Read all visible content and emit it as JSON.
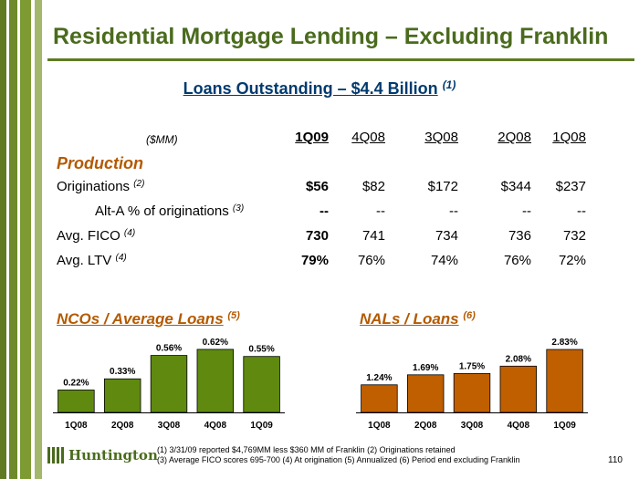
{
  "title": "Residential Mortgage Lending – Excluding Franklin",
  "subtitle": {
    "text": "Loans Outstanding – $4.4 Billion",
    "note": "(1)"
  },
  "table": {
    "unit_label": "($MM)",
    "columns": [
      "1Q09",
      "4Q08",
      "3Q08",
      "2Q08",
      "1Q08"
    ],
    "section": "Production",
    "rows": [
      {
        "label": "Originations",
        "note": "(2)",
        "values": [
          "$56",
          "$82",
          "$172",
          "$344",
          "$237"
        ]
      },
      {
        "label": "Alt-A % of originations",
        "note": "(3)",
        "values": [
          "--",
          "--",
          "--",
          "--",
          "--"
        ]
      },
      {
        "label": "Avg. FICO",
        "note": "(4)",
        "values": [
          "730",
          "741",
          "734",
          "736",
          "732"
        ]
      },
      {
        "label": "Avg. LTV",
        "note": "(4)",
        "values": [
          "79%",
          "76%",
          "74%",
          "76%",
          "72%"
        ]
      }
    ]
  },
  "ncos": {
    "title": "NCOs / Average Loans",
    "note": "(5)"
  },
  "nals": {
    "title": "NALs / Loans",
    "note": "(6)"
  },
  "chart_data": [
    {
      "type": "bar",
      "title": "NCOs / Average Loans (5)",
      "categories": [
        "1Q08",
        "2Q08",
        "3Q08",
        "4Q08",
        "1Q09"
      ],
      "values": [
        0.22,
        0.33,
        0.56,
        0.62,
        0.55
      ],
      "labels": [
        "0.22%",
        "0.33%",
        "0.56%",
        "0.62%",
        "0.55%"
      ],
      "color": "#5f8a0f",
      "ylim": [
        0,
        0.7
      ]
    },
    {
      "type": "bar",
      "title": "NALs / Loans (6)",
      "categories": [
        "1Q08",
        "2Q08",
        "3Q08",
        "4Q08",
        "1Q09"
      ],
      "values": [
        1.24,
        1.69,
        1.75,
        2.08,
        2.83
      ],
      "labels": [
        "1.24%",
        "1.69%",
        "1.75%",
        "2.08%",
        "2.83%"
      ],
      "color": "#c05f00",
      "ylim": [
        0,
        3.2
      ]
    }
  ],
  "footnotes": {
    "line1": "(1)  3/31/09  reported $4,769MM less $360 MM of Franklin     (2)  Originations retained",
    "line2": "(3)  Average FICO scores 695-700     (4)  At origination    (5)  Annualized   (6) Period end excluding Franklin"
  },
  "logo": {
    "text": "Huntington"
  },
  "page_number": "110"
}
